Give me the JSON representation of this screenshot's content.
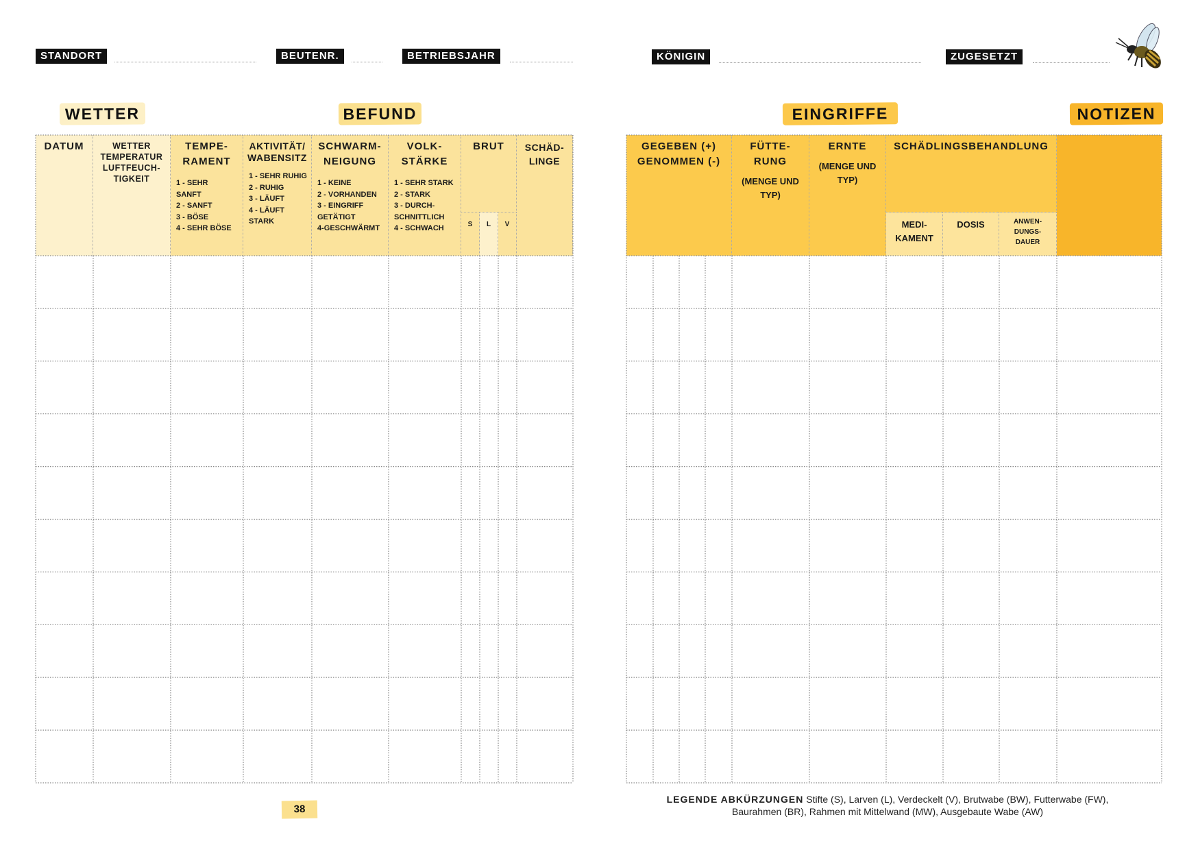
{
  "header_fields": [
    {
      "label": "STANDORT"
    },
    {
      "label": "BEUTENR."
    },
    {
      "label": "BETRIEBSJAHR"
    },
    {
      "label": "KÖNIGIN"
    },
    {
      "label": "ZUGESETZT"
    }
  ],
  "sections": {
    "wetter": "WETTER",
    "befund": "BEFUND",
    "eingriffe": "EINGRIFFE",
    "notizen": "NOTIZEN"
  },
  "left_table": {
    "datum": "DATUM",
    "wetter": "WETTER\nTEMPERATUR\nLUFTFEUCH-\nTIGKEIT",
    "temperament": {
      "title": "TEMPE-\nRAMENT",
      "scale": "1 - SEHR\n     SANFT\n2 - SANFT\n3 - BÖSE\n4 - SEHR BÖSE"
    },
    "aktivitaet": {
      "title": "AKTIVITÄT/\nWABENSITZ",
      "scale": "1 - SEHR RUHIG\n2 - RUHIG\n3 - LÄUFT\n4 - LÄUFT\n       STARK"
    },
    "schwarm": {
      "title": "SCHWARM-\nNEIGUNG",
      "scale": "1 - KEINE\n2 - VORHANDEN\n3 - EINGRIFF\n      GETÄTIGT\n4-GESCHWÄRMT"
    },
    "volk": {
      "title": "VOLK-\nSTÄRKE",
      "scale": "1 - SEHR STARK\n2 - STARK\n3 - DURCH-\n     SCHNITTLICH\n4 - SCHWACH"
    },
    "brut": {
      "title": "BRUT",
      "s": "S",
      "l": "L",
      "v": "V"
    },
    "schaedlinge": "SCHÄD-\nLINGE"
  },
  "right_table": {
    "gegeben": "GEGEBEN (+)\nGENOMMEN (-)",
    "fuetterung": {
      "title": "FÜTTE-\nRUNG",
      "sub": "(MENGE UND\nTYP)"
    },
    "ernte": {
      "title": "ERNTE",
      "sub": "(MENGE UND\nTYP)"
    },
    "schaedlingsbehandlung": {
      "title": "SCHÄDLINGSBEHANDLUNG",
      "medikament": "MEDI-\nKAMENT",
      "dosis": "DOSIS",
      "dauer": "ANWEN-\nDUNGS-\nDAUER"
    }
  },
  "footer": {
    "page_number": "38",
    "legend_title": "LEGENDE ABKÜRZUNGEN",
    "legend_line1": "Stifte (S), Larven (L), Verdeckelt (V), Brutwabe (BW), Futterwabe (FW),",
    "legend_line2": "Baurahmen (BR), Rahmen mit Mittelwand (MW), Ausgebaute Wabe (AW)"
  },
  "colors": {
    "pale": "#fdf1cc",
    "light": "#fbe39c",
    "medium": "#fcca4c",
    "notes": "#f8b52a",
    "label_bg": "#111111"
  },
  "icons": {
    "bee": "bee-illustration"
  }
}
